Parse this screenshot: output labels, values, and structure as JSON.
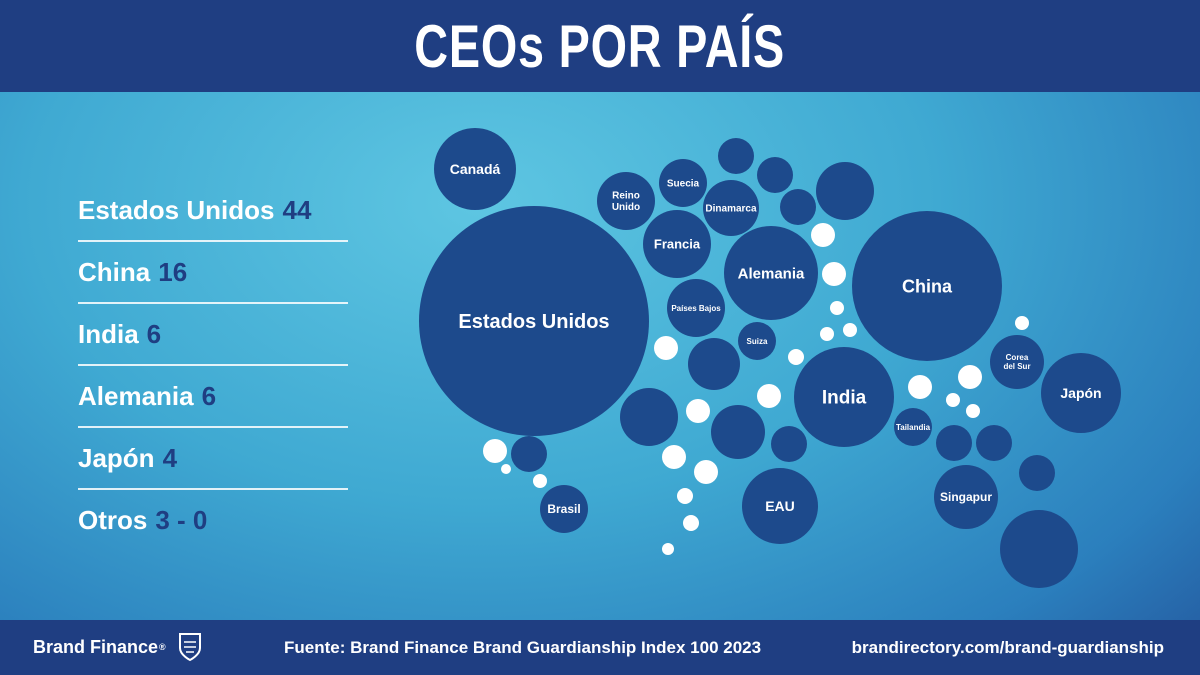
{
  "title": "CEOs POR PAÍS",
  "colors": {
    "accent": "#1f3e82",
    "bubble": "#1d4a8c",
    "bubble_light": "#ffffff",
    "background": "#3fa9d2"
  },
  "legend": [
    {
      "name": "Estados Unidos",
      "value": "44"
    },
    {
      "name": "China",
      "value": "16"
    },
    {
      "name": "India",
      "value": "6"
    },
    {
      "name": "Alemania",
      "value": "6"
    },
    {
      "name": "Japón",
      "value": "4"
    },
    {
      "name": "Otros",
      "value": "3 - 0"
    }
  ],
  "chart_data": {
    "type": "bubble",
    "title": "CEOs POR PAÍS",
    "series": [
      {
        "name": "Estados Unidos",
        "value": 44
      },
      {
        "name": "China",
        "value": 16
      },
      {
        "name": "India",
        "value": 6
      },
      {
        "name": "Alemania",
        "value": 6
      },
      {
        "name": "Japón",
        "value": 4
      }
    ],
    "labels": [
      "Canadá",
      "Estados Unidos",
      "Reino Unido",
      "Suecia",
      "Dinamarca",
      "Francia",
      "Alemania",
      "China",
      "Países Bajos",
      "Suiza",
      "India",
      "Corea del Sur",
      "Japón",
      "Tailandia",
      "Singapur",
      "EAU",
      "Brasil"
    ]
  },
  "footer": {
    "brand": "Brand Finance",
    "source": "Fuente: Brand Finance Brand Guardianship Index 100 2023",
    "url": "brandirectory.com/brand-guardianship"
  }
}
